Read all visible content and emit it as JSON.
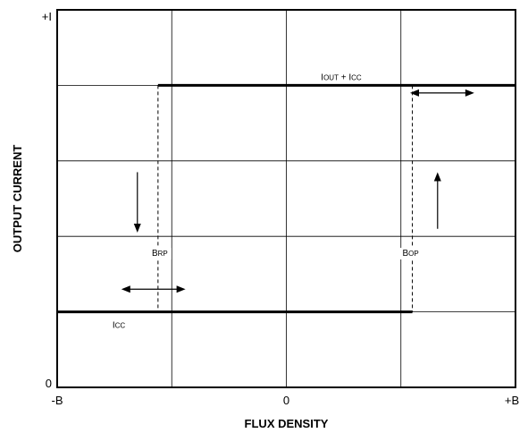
{
  "chart_data": {
    "type": "line",
    "title": "",
    "xlabel": "FLUX DENSITY",
    "ylabel": "OUTPUT CURRENT",
    "x_tick_labels": [
      "-B",
      "0",
      "+B"
    ],
    "y_tick_labels": [
      "0",
      "+I"
    ],
    "xlim": [
      -1,
      1
    ],
    "ylim": [
      0,
      1
    ],
    "grid": true,
    "grid_divisions": {
      "x": 4,
      "y": 5
    },
    "legend": "none",
    "series": [
      {
        "name": "",
        "x": [
          -1,
          -0.56,
          -0.56,
          1
        ],
        "y": [
          0.2,
          0.2,
          0.8,
          0.8
        ]
      },
      {
        "name": "",
        "x": [
          -1,
          0.55,
          0.55,
          1
        ],
        "y": [
          0.2,
          0.2,
          0.8,
          0.8
        ]
      }
    ],
    "thresholds": [
      {
        "label_main": "B",
        "label_sub": "RP",
        "x": -0.56
      },
      {
        "label_main": "B",
        "label_sub": "OP",
        "x": 0.55
      }
    ],
    "levels": [
      {
        "label_main": "I",
        "label_sub": "CC",
        "y": 0.2
      },
      {
        "label_main": "I",
        "label_sub": "OUT",
        "label_main2": " + I",
        "label_sub2": "CC",
        "y": 0.8
      }
    ],
    "annotations": [
      {
        "type": "double-arrow-horizontal",
        "x1": -0.72,
        "x2": -0.44,
        "y": 0.26
      },
      {
        "type": "double-arrow-horizontal",
        "x1": 0.54,
        "x2": 0.82,
        "y": 0.78
      },
      {
        "type": "arrow-down",
        "x": -0.65,
        "y1": 0.57,
        "y2": 0.41
      },
      {
        "type": "arrow-up",
        "x": 0.66,
        "y1": 0.42,
        "y2": 0.57
      }
    ]
  }
}
